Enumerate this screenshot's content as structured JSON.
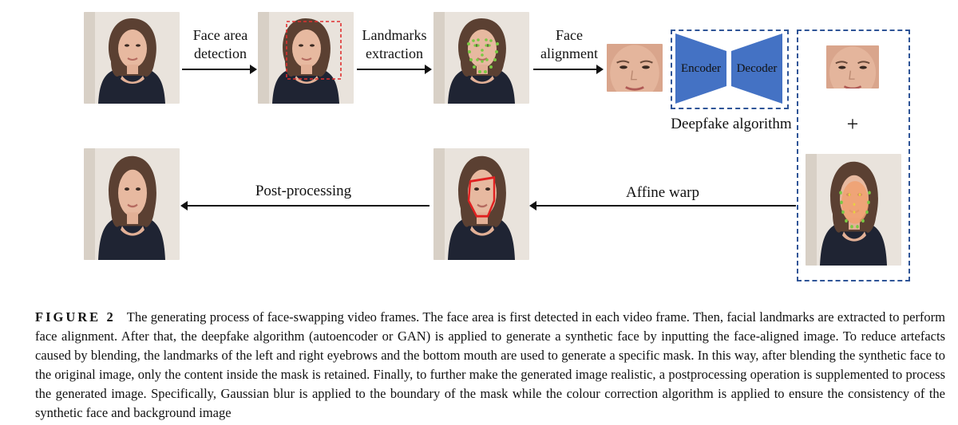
{
  "figure": {
    "steps": {
      "face_area_detection": "Face area\ndetection",
      "landmarks_extraction": "Landmarks\nextraction",
      "face_alignment": "Face\nalignment",
      "encoder": "Encoder",
      "decoder": "Decoder",
      "deepfake_algorithm": "Deepfake algorithm",
      "plus": "+",
      "affine_warp": "Affine warp",
      "post_processing": "Post-processing"
    },
    "colors": {
      "dashed_box": "#2f5597",
      "encoder_fill": "#4472c4",
      "detection_box": "#e03030",
      "landmarks": "#7ac943",
      "mask": "#e02020"
    },
    "icons": [
      "face-photo",
      "arrow-right",
      "arrow-left",
      "encoder-trapezoid",
      "decoder-trapezoid"
    ]
  },
  "caption": {
    "label": "FIGURE 2",
    "text": "The generating process of face-swapping video frames. The face area is first detected in each video frame. Then, facial landmarks are extracted to perform face alignment. After that, the deepfake algorithm (autoencoder or GAN) is applied to generate a synthetic face by inputting the face-aligned image. To reduce artefacts caused by blending, the landmarks of the left and right eyebrows and the bottom mouth are used to generate a specific mask. In this way, after blending the synthetic face to the original image, only the content inside the mask is retained. Finally, to further make the generated image realistic, a postprocessing operation is supplemented to process the generated image. Specifically, Gaussian blur is applied to the boundary of the mask while the colour correction algorithm is applied to ensure the consistency of the synthetic face and background image"
  }
}
